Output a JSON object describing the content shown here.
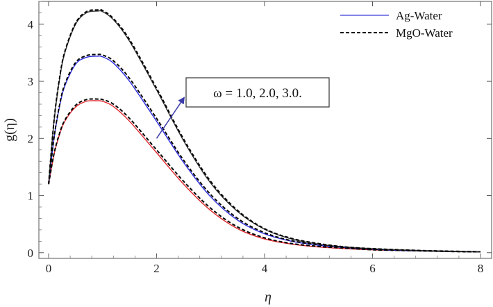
{
  "chart_data": {
    "type": "line",
    "xlabel": "η",
    "ylabel": "g(η)",
    "xlim": [
      0,
      8
    ],
    "ylim": [
      -0.1,
      4.4
    ],
    "x_ticks": [
      "0",
      "2",
      "4",
      "6",
      "8"
    ],
    "y_ticks": [
      "0",
      "1",
      "2",
      "3",
      "4"
    ],
    "legend": {
      "position": "top-right",
      "entries": [
        {
          "label": "Ag-Water",
          "style": "solid",
          "color": "#3b3bd9"
        },
        {
          "label": "MgO-Water",
          "style": "dashed",
          "color": "#000000"
        }
      ]
    },
    "annotation": {
      "text": "ω = 1.0, 2.0, 3.0.",
      "arrow_from": [
        2.0,
        2.0
      ],
      "arrow_to": [
        2.5,
        2.7
      ]
    },
    "x": [
      0,
      0.1,
      0.2,
      0.3,
      0.5,
      0.7,
      0.9,
      1.0,
      1.2,
      1.5,
      2.0,
      2.5,
      3.0,
      3.5,
      4.0,
      4.5,
      5.0,
      5.5,
      6.0,
      6.5,
      7.0,
      7.5,
      8.0
    ],
    "series": [
      {
        "label": "ω = 1.0",
        "color": "#e0262b",
        "solid": [
          1.2,
          1.72,
          2.06,
          2.3,
          2.55,
          2.65,
          2.66,
          2.65,
          2.56,
          2.3,
          1.75,
          1.2,
          0.74,
          0.42,
          0.24,
          0.15,
          0.1,
          0.07,
          0.05,
          0.04,
          0.03,
          0.02,
          0.015
        ],
        "dashed": [
          1.2,
          1.73,
          2.08,
          2.32,
          2.58,
          2.68,
          2.69,
          2.68,
          2.6,
          2.35,
          1.8,
          1.25,
          0.78,
          0.45,
          0.26,
          0.16,
          0.11,
          0.08,
          0.05,
          0.04,
          0.03,
          0.02,
          0.015
        ]
      },
      {
        "label": "ω = 2.0",
        "color": "#2a2ae0",
        "solid": [
          1.2,
          2.0,
          2.55,
          2.92,
          3.3,
          3.42,
          3.44,
          3.43,
          3.32,
          3.0,
          2.3,
          1.58,
          0.98,
          0.57,
          0.33,
          0.2,
          0.13,
          0.09,
          0.06,
          0.04,
          0.03,
          0.02,
          0.015
        ],
        "dashed": [
          1.2,
          2.01,
          2.57,
          2.95,
          3.33,
          3.45,
          3.47,
          3.46,
          3.36,
          3.05,
          2.35,
          1.62,
          1.02,
          0.6,
          0.35,
          0.21,
          0.14,
          0.09,
          0.06,
          0.04,
          0.03,
          0.02,
          0.015
        ]
      },
      {
        "label": "ω = 3.0",
        "color": "#333333",
        "solid": [
          1.2,
          2.3,
          3.02,
          3.5,
          4.0,
          4.2,
          4.23,
          4.22,
          4.08,
          3.7,
          2.85,
          1.96,
          1.22,
          0.72,
          0.41,
          0.24,
          0.15,
          0.1,
          0.07,
          0.05,
          0.035,
          0.025,
          0.015
        ],
        "dashed": [
          1.2,
          2.31,
          3.04,
          3.52,
          4.02,
          4.22,
          4.25,
          4.24,
          4.1,
          3.73,
          2.88,
          1.99,
          1.25,
          0.74,
          0.42,
          0.25,
          0.16,
          0.1,
          0.07,
          0.05,
          0.035,
          0.025,
          0.015
        ]
      }
    ]
  }
}
